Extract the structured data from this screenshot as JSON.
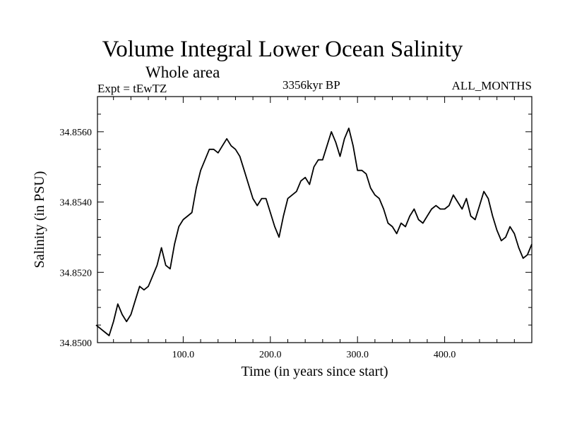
{
  "chart_data": {
    "type": "line",
    "title": "Volume Integral Lower Ocean Salinity",
    "subtitle": "Whole area",
    "expt_label": "Expt = tEwTZ",
    "date_label": "3356kyr BP",
    "months_label": "ALL_MONTHS",
    "xlabel": "Time (in years since start)",
    "ylabel": "Salinity (in PSU)",
    "xlim": [
      0,
      500
    ],
    "ylim": [
      34.85,
      34.857
    ],
    "x_ticks": [
      100,
      200,
      300,
      400
    ],
    "x_tick_labels": [
      "100.0",
      "200.0",
      "300.0",
      "400.0"
    ],
    "y_ticks": [
      34.85,
      34.852,
      34.854,
      34.856
    ],
    "y_tick_labels": [
      "34.8500",
      "34.8520",
      "34.8540",
      "34.8560"
    ],
    "grid": false,
    "series": [
      {
        "name": "Salinity",
        "x": [
          0,
          5,
          10,
          15,
          20,
          25,
          30,
          35,
          40,
          45,
          50,
          55,
          60,
          65,
          70,
          75,
          80,
          85,
          90,
          95,
          100,
          105,
          110,
          115,
          120,
          125,
          130,
          135,
          140,
          145,
          150,
          155,
          160,
          165,
          170,
          175,
          180,
          185,
          190,
          195,
          200,
          205,
          210,
          215,
          220,
          225,
          230,
          235,
          240,
          245,
          250,
          255,
          260,
          265,
          270,
          275,
          280,
          285,
          290,
          295,
          300,
          305,
          310,
          315,
          320,
          325,
          330,
          335,
          340,
          345,
          350,
          355,
          360,
          365,
          370,
          375,
          380,
          385,
          390,
          395,
          400,
          405,
          410,
          415,
          420,
          425,
          430,
          435,
          440,
          445,
          450,
          455,
          460,
          465,
          470,
          475,
          480,
          485,
          490,
          495,
          500
        ],
        "values": [
          34.8505,
          34.8504,
          34.8503,
          34.8502,
          34.8506,
          34.8511,
          34.8508,
          34.8506,
          34.8508,
          34.8512,
          34.8516,
          34.8515,
          34.8516,
          34.8519,
          34.8522,
          34.8527,
          34.8522,
          34.8521,
          34.8528,
          34.8533,
          34.8535,
          34.8536,
          34.8537,
          34.8544,
          34.8549,
          34.8552,
          34.8555,
          34.8555,
          34.8554,
          34.8556,
          34.8558,
          34.8556,
          34.8555,
          34.8553,
          34.8549,
          34.8545,
          34.8541,
          34.8539,
          34.8541,
          34.8541,
          34.8537,
          34.8533,
          34.853,
          34.8536,
          34.8541,
          34.8542,
          34.8543,
          34.8546,
          34.8547,
          34.8545,
          34.855,
          34.8552,
          34.8552,
          34.8556,
          34.856,
          34.8557,
          34.8553,
          34.8558,
          34.8561,
          34.8556,
          34.8549,
          34.8549,
          34.8548,
          34.8544,
          34.8542,
          34.8541,
          34.8538,
          34.8534,
          34.8533,
          34.8531,
          34.8534,
          34.8533,
          34.8536,
          34.8538,
          34.8535,
          34.8534,
          34.8536,
          34.8538,
          34.8539,
          34.8538,
          34.8538,
          34.8539,
          34.8542,
          34.854,
          34.8538,
          34.8541,
          34.8536,
          34.8535,
          34.8539,
          34.8543,
          34.8541,
          34.8536,
          34.8532,
          34.8529,
          34.853,
          34.8533,
          34.8531,
          34.8527,
          34.8524,
          34.8525,
          34.8528
        ]
      }
    ]
  }
}
